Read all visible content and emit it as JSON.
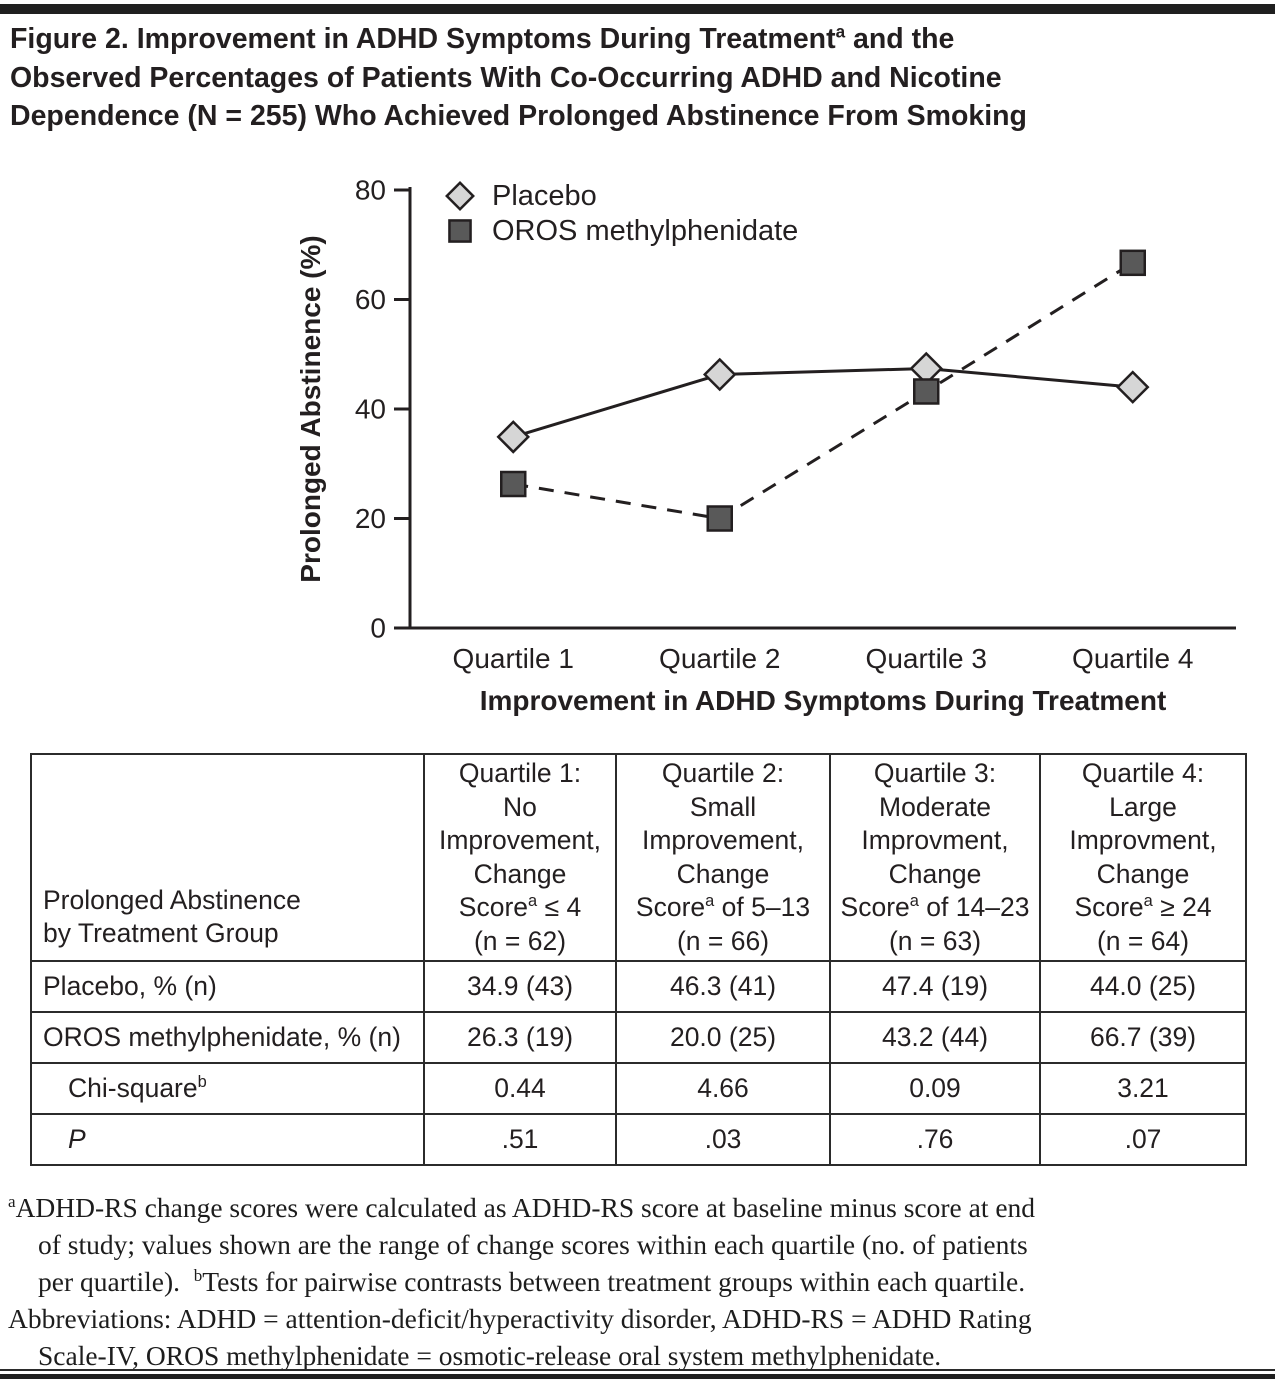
{
  "figure": {
    "title_lines": [
      {
        "indent": false,
        "segments": [
          {
            "t": "Figure 2. Improvement in ADHD Symptoms During Treatment"
          },
          {
            "t": "a",
            "sup": true
          },
          {
            "t": " and the"
          }
        ]
      },
      {
        "indent": false,
        "segments": [
          {
            "t": "Observed Percentages of Patients With Co-Occurring ADHD and Nicotine"
          }
        ]
      },
      {
        "indent": false,
        "segments": [
          {
            "t": "Dependence (N = 255) Who Achieved Prolonged Abstinence From Smoking"
          }
        ]
      }
    ]
  },
  "chart_data": {
    "type": "line",
    "categories": [
      "Quartile 1",
      "Quartile 2",
      "Quartile 3",
      "Quartile 4"
    ],
    "series": [
      {
        "name": "Placebo",
        "values": [
          34.9,
          46.3,
          47.4,
          44.0
        ],
        "marker": "diamond",
        "line": "solid",
        "marker_fill": "#d6d6d6"
      },
      {
        "name": "OROS methylphenidate",
        "values": [
          26.3,
          20.0,
          43.2,
          66.7
        ],
        "marker": "square",
        "line": "dashed",
        "marker_fill": "#595959"
      }
    ],
    "xlabel": "Improvement in ADHD Symptoms During Treatment",
    "ylabel": "Prolonged Abstinence (%)",
    "ylim": [
      0,
      80
    ],
    "yticks": [
      0,
      20,
      40,
      60,
      80
    ],
    "grid": false,
    "legend_position": "top-left"
  },
  "table": {
    "corner_header": "Prolonged Abstinence\nby Treatment Group",
    "column_headers": [
      "Quartile 1:\nNo\nImprovement,\nChange\nScore^a ≤ 4\n(n = 62)",
      "Quartile 2:\nSmall\nImprovement,\nChange\nScore^a of 5–13\n(n = 66)",
      "Quartile 3:\nModerate\nImprovment,\nChange\nScore^a of 14–23\n(n = 63)",
      "Quartile 4:\nLarge\nImprovment,\nChange\nScore^a ≥ 24\n(n = 64)"
    ],
    "rows": [
      {
        "label": "Placebo, % (n)",
        "indent": false,
        "italic": false,
        "values": [
          "34.9 (43)",
          "46.3 (41)",
          "47.4 (19)",
          "44.0 (25)"
        ]
      },
      {
        "label": "OROS methylphenidate, % (n)",
        "indent": false,
        "italic": false,
        "values": [
          "26.3 (19)",
          "20.0 (25)",
          "43.2 (44)",
          "66.7 (39)"
        ]
      },
      {
        "label": "Chi-square^b",
        "indent": true,
        "italic": false,
        "values": [
          "0.44",
          "4.66",
          "0.09",
          "3.21"
        ]
      },
      {
        "label": "P",
        "indent": true,
        "italic": true,
        "values": [
          ".51",
          ".03",
          ".76",
          ".07"
        ]
      }
    ]
  },
  "footnotes": {
    "lines": [
      {
        "indent": false,
        "segments": [
          {
            "t": "a",
            "sup": true
          },
          {
            "t": "ADHD-RS change scores were calculated as ADHD-RS score at baseline minus score at end"
          }
        ]
      },
      {
        "indent": true,
        "segments": [
          {
            "t": "of study; values shown are the range of change scores within each quartile (no. of patients"
          }
        ]
      },
      {
        "indent": true,
        "segments": [
          {
            "t": "per quartile).  "
          },
          {
            "t": "b",
            "sup": true
          },
          {
            "t": "Tests for pairwise contrasts between treatment groups within each quartile."
          }
        ]
      },
      {
        "indent": false,
        "segments": [
          {
            "t": "Abbreviations: ADHD = attention-deficit/hyperactivity disorder, ADHD-RS = ADHD Rating"
          }
        ]
      },
      {
        "indent": true,
        "segments": [
          {
            "t": "Scale-IV, OROS methylphenidate = osmotic-release oral system methylphenidate."
          }
        ]
      }
    ]
  },
  "colors": {
    "ink": "#231f20",
    "top_bar": "#1f1f1f",
    "placebo_marker_fill": "#d6d6d6",
    "oros_marker_fill": "#595959"
  }
}
